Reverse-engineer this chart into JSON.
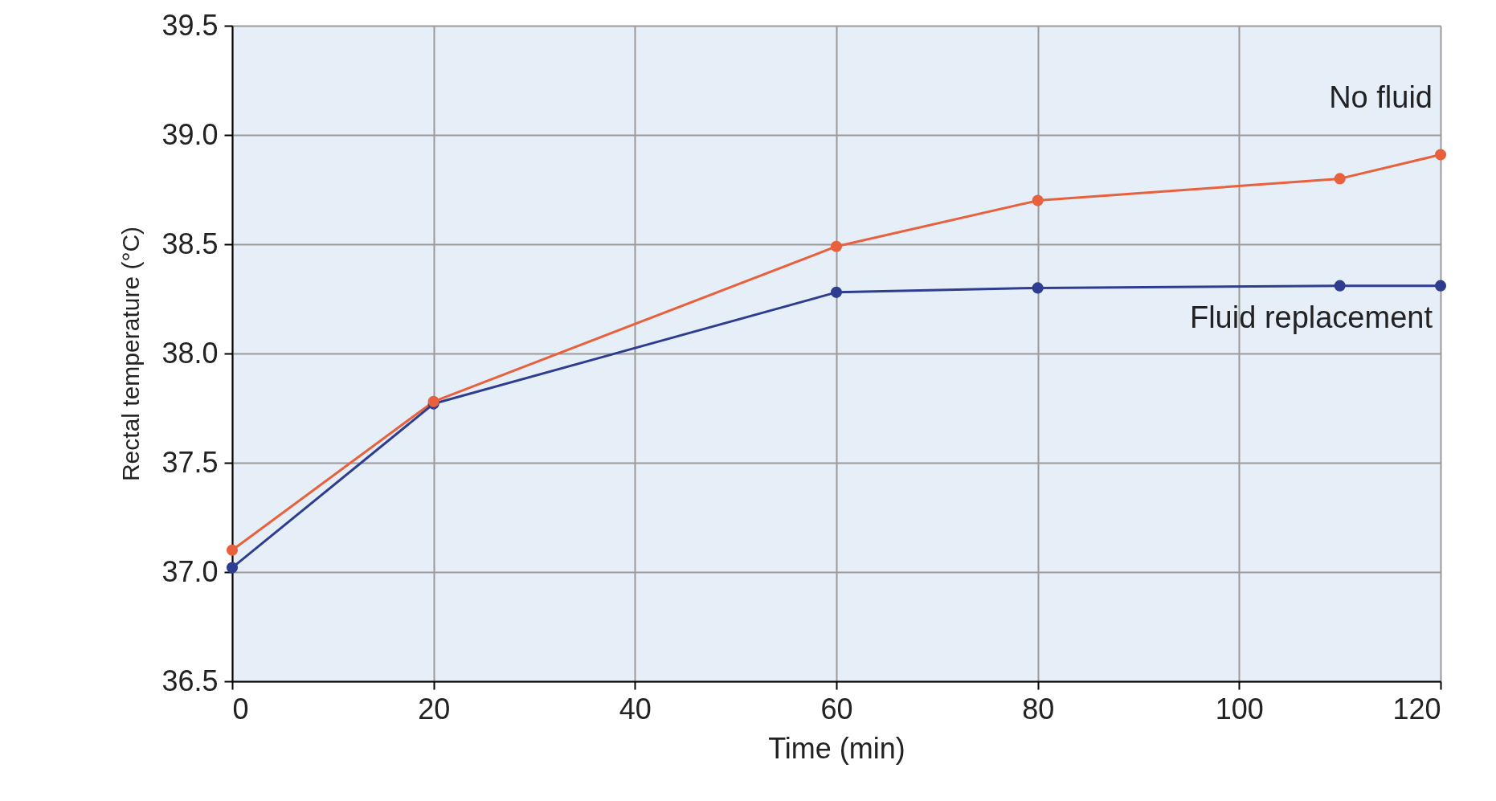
{
  "chart_data": {
    "type": "line",
    "xlabel": "Time (min)",
    "ylabel": "Rectal temperature (°C)",
    "x": [
      0,
      20,
      60,
      80,
      110,
      120
    ],
    "series": [
      {
        "name": "No fluid",
        "color": "#e8603c",
        "values": [
          37.1,
          37.78,
          38.49,
          38.7,
          38.8,
          38.91
        ]
      },
      {
        "name": "Fluid replacement",
        "color": "#2e3d8f",
        "values": [
          37.02,
          37.77,
          38.28,
          38.3,
          38.31,
          38.31
        ]
      }
    ],
    "xlim": [
      0,
      120
    ],
    "xticks": [
      0,
      20,
      40,
      60,
      80,
      100,
      120
    ],
    "ylim": [
      36.5,
      39.5
    ],
    "yticks": [
      {
        "value": 36.5,
        "label": "36.5"
      },
      {
        "value": 37,
        "label": "37.0"
      },
      {
        "value": 37.5,
        "label": "37.5"
      },
      {
        "value": 38,
        "label": "38.0"
      },
      {
        "value": 38.5,
        "label": "38.5"
      },
      {
        "value": 39,
        "label": "39.0"
      },
      {
        "value": 39.5,
        "label": "39.5"
      }
    ],
    "grid": true,
    "marker": "circle",
    "line_style": "solid",
    "legend": false
  }
}
